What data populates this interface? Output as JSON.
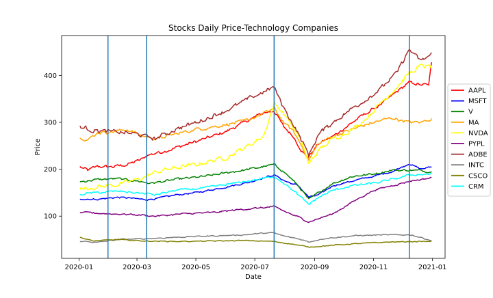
{
  "chart_data": {
    "type": "line",
    "title": "Stocks Daily Price-Technology Companies",
    "xlabel": "Date",
    "ylabel": "Price",
    "xlim": [
      "2019-12-14",
      "2021-01-14"
    ],
    "ylim": [
      10,
      485
    ],
    "x_ticks": [
      "2020-01",
      "2020-03",
      "2020-05",
      "2020-07",
      "2020-09",
      "2020-11",
      "2021-01"
    ],
    "y_ticks": [
      100,
      200,
      300,
      400
    ],
    "grid": false,
    "legend_position": "right",
    "vertical_markers": {
      "color": "#1f77b4",
      "dates": [
        "2020-01-31",
        "2020-03-11",
        "2020-07-21",
        "2020-12-08"
      ]
    },
    "series": [
      {
        "name": "AAPL",
        "color": "#ff0000",
        "noise": 3,
        "points": [
          [
            "2020-01-02",
            205
          ],
          [
            "2020-01-10",
            198
          ],
          [
            "2020-01-20",
            206
          ],
          [
            "2020-02-05",
            205
          ],
          [
            "2020-02-20",
            210
          ],
          [
            "2020-03-05",
            220
          ],
          [
            "2020-03-12",
            230
          ],
          [
            "2020-04-01",
            240
          ],
          [
            "2020-04-20",
            252
          ],
          [
            "2020-05-10",
            265
          ],
          [
            "2020-06-01",
            280
          ],
          [
            "2020-06-20",
            300
          ],
          [
            "2020-07-10",
            320
          ],
          [
            "2020-07-21",
            325
          ],
          [
            "2020-07-31",
            290
          ],
          [
            "2020-08-10",
            270
          ],
          [
            "2020-08-20",
            235
          ],
          [
            "2020-08-25",
            225
          ],
          [
            "2020-09-05",
            255
          ],
          [
            "2020-09-20",
            270
          ],
          [
            "2020-10-10",
            300
          ],
          [
            "2020-10-25",
            320
          ],
          [
            "2020-11-10",
            340
          ],
          [
            "2020-11-25",
            365
          ],
          [
            "2020-12-08",
            385
          ],
          [
            "2020-12-20",
            380
          ],
          [
            "2020-12-28",
            380
          ],
          [
            "2020-12-31",
            425
          ]
        ]
      },
      {
        "name": "MSFT",
        "color": "#0000ff",
        "noise": 1.5,
        "points": [
          [
            "2020-01-02",
            137
          ],
          [
            "2020-01-20",
            136
          ],
          [
            "2020-02-10",
            140
          ],
          [
            "2020-02-25",
            138
          ],
          [
            "2020-03-10",
            135
          ],
          [
            "2020-03-20",
            137
          ],
          [
            "2020-04-10",
            145
          ],
          [
            "2020-05-01",
            150
          ],
          [
            "2020-06-01",
            162
          ],
          [
            "2020-06-25",
            172
          ],
          [
            "2020-07-10",
            182
          ],
          [
            "2020-07-21",
            188
          ],
          [
            "2020-08-01",
            175
          ],
          [
            "2020-08-15",
            165
          ],
          [
            "2020-08-26",
            140
          ],
          [
            "2020-09-05",
            145
          ],
          [
            "2020-09-20",
            165
          ],
          [
            "2020-10-10",
            175
          ],
          [
            "2020-11-01",
            185
          ],
          [
            "2020-11-20",
            195
          ],
          [
            "2020-12-08",
            212
          ],
          [
            "2020-12-20",
            200
          ],
          [
            "2020-12-31",
            205
          ]
        ]
      },
      {
        "name": "V",
        "color": "#008000",
        "noise": 2,
        "points": [
          [
            "2020-01-02",
            173
          ],
          [
            "2020-01-20",
            178
          ],
          [
            "2020-02-10",
            180
          ],
          [
            "2020-03-01",
            175
          ],
          [
            "2020-03-15",
            170
          ],
          [
            "2020-04-10",
            178
          ],
          [
            "2020-05-10",
            185
          ],
          [
            "2020-06-10",
            195
          ],
          [
            "2020-07-01",
            202
          ],
          [
            "2020-07-21",
            210
          ],
          [
            "2020-07-31",
            195
          ],
          [
            "2020-08-15",
            165
          ],
          [
            "2020-08-26",
            135
          ],
          [
            "2020-09-05",
            150
          ],
          [
            "2020-09-20",
            170
          ],
          [
            "2020-10-10",
            185
          ],
          [
            "2020-11-01",
            190
          ],
          [
            "2020-11-20",
            198
          ],
          [
            "2020-12-10",
            198
          ],
          [
            "2020-12-31",
            195
          ]
        ]
      },
      {
        "name": "MA",
        "color": "#ffa500",
        "noise": 3,
        "points": [
          [
            "2020-01-02",
            270
          ],
          [
            "2020-01-10",
            262
          ],
          [
            "2020-01-20",
            278
          ],
          [
            "2020-02-05",
            280
          ],
          [
            "2020-02-20",
            285
          ],
          [
            "2020-03-05",
            272
          ],
          [
            "2020-03-20",
            265
          ],
          [
            "2020-04-10",
            275
          ],
          [
            "2020-05-01",
            285
          ],
          [
            "2020-06-01",
            295
          ],
          [
            "2020-06-20",
            302
          ],
          [
            "2020-07-10",
            318
          ],
          [
            "2020-07-21",
            330
          ],
          [
            "2020-07-31",
            300
          ],
          [
            "2020-08-10",
            280
          ],
          [
            "2020-08-20",
            245
          ],
          [
            "2020-08-26",
            220
          ],
          [
            "2020-09-05",
            255
          ],
          [
            "2020-09-20",
            270
          ],
          [
            "2020-10-10",
            285
          ],
          [
            "2020-11-01",
            300
          ],
          [
            "2020-11-20",
            310
          ],
          [
            "2020-12-08",
            300
          ],
          [
            "2020-12-20",
            300
          ],
          [
            "2020-12-31",
            308
          ]
        ]
      },
      {
        "name": "NVDA",
        "color": "#ffff00",
        "noise": 4,
        "points": [
          [
            "2020-01-02",
            158
          ],
          [
            "2020-01-20",
            163
          ],
          [
            "2020-02-05",
            166
          ],
          [
            "2020-02-20",
            172
          ],
          [
            "2020-03-05",
            180
          ],
          [
            "2020-03-15",
            190
          ],
          [
            "2020-04-01",
            200
          ],
          [
            "2020-05-01",
            210
          ],
          [
            "2020-06-01",
            225
          ],
          [
            "2020-06-20",
            245
          ],
          [
            "2020-07-10",
            270
          ],
          [
            "2020-07-21",
            340
          ],
          [
            "2020-07-31",
            320
          ],
          [
            "2020-08-10",
            290
          ],
          [
            "2020-08-20",
            250
          ],
          [
            "2020-08-26",
            210
          ],
          [
            "2020-09-05",
            240
          ],
          [
            "2020-09-20",
            265
          ],
          [
            "2020-10-10",
            285
          ],
          [
            "2020-10-25",
            310
          ],
          [
            "2020-11-10",
            345
          ],
          [
            "2020-11-25",
            375
          ],
          [
            "2020-12-08",
            405
          ],
          [
            "2020-12-20",
            420
          ],
          [
            "2020-12-31",
            418
          ]
        ]
      },
      {
        "name": "PYPL",
        "color": "#800080",
        "noise": 1.5,
        "points": [
          [
            "2020-01-02",
            108
          ],
          [
            "2020-02-01",
            105
          ],
          [
            "2020-03-01",
            103
          ],
          [
            "2020-03-20",
            100
          ],
          [
            "2020-04-20",
            105
          ],
          [
            "2020-05-20",
            108
          ],
          [
            "2020-06-20",
            115
          ],
          [
            "2020-07-21",
            120
          ],
          [
            "2020-08-01",
            110
          ],
          [
            "2020-08-15",
            98
          ],
          [
            "2020-08-26",
            88
          ],
          [
            "2020-09-05",
            95
          ],
          [
            "2020-09-20",
            105
          ],
          [
            "2020-10-10",
            130
          ],
          [
            "2020-11-01",
            155
          ],
          [
            "2020-11-20",
            165
          ],
          [
            "2020-12-10",
            175
          ],
          [
            "2020-12-31",
            182
          ]
        ]
      },
      {
        "name": "ADBE",
        "color": "#a52a2a",
        "noise": 4,
        "points": [
          [
            "2020-01-02",
            292
          ],
          [
            "2020-01-15",
            283
          ],
          [
            "2020-02-01",
            280
          ],
          [
            "2020-02-20",
            278
          ],
          [
            "2020-03-05",
            273
          ],
          [
            "2020-03-20",
            265
          ],
          [
            "2020-04-10",
            285
          ],
          [
            "2020-05-01",
            300
          ],
          [
            "2020-06-01",
            325
          ],
          [
            "2020-06-20",
            345
          ],
          [
            "2020-07-10",
            365
          ],
          [
            "2020-07-21",
            375
          ],
          [
            "2020-07-31",
            330
          ],
          [
            "2020-08-10",
            295
          ],
          [
            "2020-08-20",
            255
          ],
          [
            "2020-08-26",
            230
          ],
          [
            "2020-09-05",
            275
          ],
          [
            "2020-09-20",
            300
          ],
          [
            "2020-10-10",
            330
          ],
          [
            "2020-10-25",
            350
          ],
          [
            "2020-11-10",
            375
          ],
          [
            "2020-11-25",
            405
          ],
          [
            "2020-12-08",
            455
          ],
          [
            "2020-12-20",
            430
          ],
          [
            "2020-12-31",
            445
          ]
        ]
      },
      {
        "name": "INTC",
        "color": "#808080",
        "noise": 1,
        "points": [
          [
            "2020-01-02",
            47
          ],
          [
            "2020-01-20",
            44
          ],
          [
            "2020-02-10",
            50
          ],
          [
            "2020-03-10",
            52
          ],
          [
            "2020-04-10",
            55
          ],
          [
            "2020-05-20",
            58
          ],
          [
            "2020-06-20",
            60
          ],
          [
            "2020-07-10",
            64
          ],
          [
            "2020-07-21",
            64
          ],
          [
            "2020-08-01",
            57
          ],
          [
            "2020-08-15",
            52
          ],
          [
            "2020-08-26",
            45
          ],
          [
            "2020-09-10",
            52
          ],
          [
            "2020-10-10",
            58
          ],
          [
            "2020-11-10",
            60
          ],
          [
            "2020-12-10",
            60
          ],
          [
            "2020-12-31",
            48
          ]
        ]
      },
      {
        "name": "CSCO",
        "color": "#808000",
        "noise": 0.8,
        "points": [
          [
            "2020-01-02",
            55
          ],
          [
            "2020-01-15",
            47
          ],
          [
            "2020-02-10",
            50
          ],
          [
            "2020-03-10",
            47
          ],
          [
            "2020-04-10",
            46
          ],
          [
            "2020-05-20",
            47
          ],
          [
            "2020-06-20",
            48
          ],
          [
            "2020-07-21",
            46
          ],
          [
            "2020-08-10",
            40
          ],
          [
            "2020-08-26",
            34
          ],
          [
            "2020-09-20",
            38
          ],
          [
            "2020-10-20",
            42
          ],
          [
            "2020-11-20",
            45
          ],
          [
            "2020-12-20",
            46
          ],
          [
            "2020-12-31",
            46
          ]
        ]
      },
      {
        "name": "CRM",
        "color": "#00ffff",
        "noise": 2,
        "points": [
          [
            "2020-01-02",
            147
          ],
          [
            "2020-01-20",
            150
          ],
          [
            "2020-02-10",
            153
          ],
          [
            "2020-03-10",
            148
          ],
          [
            "2020-03-20",
            145
          ],
          [
            "2020-04-10",
            155
          ],
          [
            "2020-05-10",
            160
          ],
          [
            "2020-06-10",
            170
          ],
          [
            "2020-07-10",
            180
          ],
          [
            "2020-07-21",
            185
          ],
          [
            "2020-08-01",
            170
          ],
          [
            "2020-08-15",
            145
          ],
          [
            "2020-08-26",
            125
          ],
          [
            "2020-09-05",
            140
          ],
          [
            "2020-09-20",
            155
          ],
          [
            "2020-10-10",
            165
          ],
          [
            "2020-11-01",
            170
          ],
          [
            "2020-11-20",
            178
          ],
          [
            "2020-12-10",
            188
          ],
          [
            "2020-12-31",
            190
          ]
        ]
      }
    ]
  }
}
